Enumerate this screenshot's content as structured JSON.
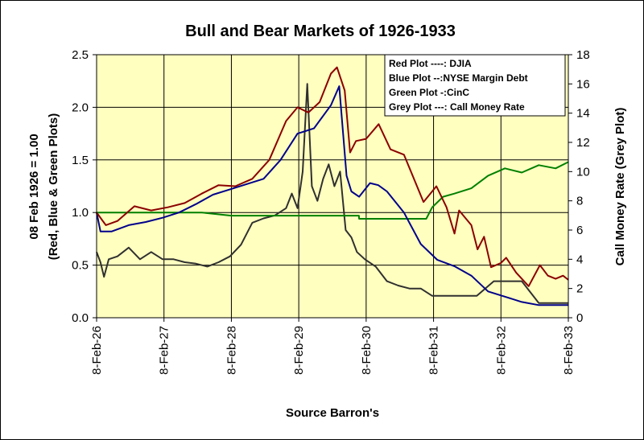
{
  "chart_data": {
    "type": "line",
    "title": "Bull and Bear Markets of 1926-1933",
    "xlabel": "Source Barron's",
    "ylabel_left": "08 Feb 1926 = 1.00",
    "ylabel_left_sub": "(Red, Blue & Green Plots)",
    "ylabel_right": "Call Money Rate (Grey Plot)",
    "x_ticks": [
      "8-Feb-26",
      "8-Feb-27",
      "8-Feb-28",
      "8-Feb-29",
      "8-Feb-30",
      "8-Feb-31",
      "8-Feb-32",
      "8-Feb-33"
    ],
    "x_range": [
      "1926-02-08",
      "1933-02-08"
    ],
    "y_left_ticks": [
      "0.0",
      "0.5",
      "1.0",
      "1.5",
      "2.0",
      "2.5"
    ],
    "y_left_range": [
      0,
      2.5
    ],
    "y_right_ticks": [
      "0",
      "2",
      "4",
      "6",
      "8",
      "10",
      "12",
      "14",
      "16",
      "18"
    ],
    "y_right_range": [
      0,
      18
    ],
    "grid": true,
    "legend_position": "top-right",
    "legend": [
      "Red Plot ----: DJIA",
      "Blue Plot  --:NYSE Margin Debt",
      "Green Plot -:CinC",
      "Grey Plot ---: Call Money Rate"
    ],
    "colors": {
      "plot_bg": "#ffffc0",
      "djia": "#8b0000",
      "margin_debt": "#00008b",
      "cinc": "#008000",
      "call_money": "#303030"
    },
    "series": [
      {
        "name": "DJIA",
        "axis": "left",
        "x": [
          "1926-02-08",
          "1926-03-30",
          "1926-06-01",
          "1926-09-01",
          "1926-12-01",
          "1927-03-01",
          "1927-06-01",
          "1927-09-01",
          "1927-12-01",
          "1928-03-01",
          "1928-06-01",
          "1928-09-01",
          "1928-12-01",
          "1929-02-01",
          "1929-04-01",
          "1929-06-01",
          "1929-08-01",
          "1929-09-03",
          "1929-10-15",
          "1929-11-13",
          "1929-12-15",
          "1930-02-08",
          "1930-04-17",
          "1930-06-20",
          "1930-09-01",
          "1930-12-16",
          "1931-02-24",
          "1931-04-20",
          "1931-06-02",
          "1931-06-27",
          "1931-09-01",
          "1931-10-05",
          "1931-11-09",
          "1931-12-17",
          "1932-02-08",
          "1932-03-08",
          "1932-05-01",
          "1932-07-08",
          "1932-09-07",
          "1932-10-20",
          "1932-12-01",
          "1933-01-10",
          "1933-02-08"
        ],
        "values": [
          1.0,
          0.88,
          0.92,
          1.06,
          1.02,
          1.05,
          1.09,
          1.18,
          1.26,
          1.25,
          1.32,
          1.5,
          1.87,
          2.0,
          1.95,
          2.05,
          2.32,
          2.38,
          2.16,
          1.57,
          1.68,
          1.7,
          1.84,
          1.6,
          1.55,
          1.1,
          1.25,
          1.05,
          0.8,
          1.02,
          0.88,
          0.65,
          0.77,
          0.48,
          0.52,
          0.57,
          0.43,
          0.3,
          0.5,
          0.4,
          0.37,
          0.4,
          0.36
        ]
      },
      {
        "name": "NYSE Margin Debt",
        "axis": "left",
        "x": [
          "1926-02-08",
          "1926-03-01",
          "1926-05-01",
          "1926-08-01",
          "1926-11-01",
          "1927-02-01",
          "1927-05-01",
          "1927-08-01",
          "1927-11-01",
          "1928-02-01",
          "1928-05-01",
          "1928-08-01",
          "1928-11-01",
          "1929-02-01",
          "1929-05-01",
          "1929-08-01",
          "1929-09-15",
          "1929-10-25",
          "1929-11-20",
          "1930-01-01",
          "1930-03-01",
          "1930-04-15",
          "1930-06-01",
          "1930-09-01",
          "1930-12-01",
          "1931-03-01",
          "1931-06-01",
          "1931-09-01",
          "1931-12-01",
          "1932-03-01",
          "1932-06-01",
          "1932-09-01",
          "1932-12-01",
          "1933-02-08"
        ],
        "values": [
          1.0,
          0.82,
          0.82,
          0.88,
          0.91,
          0.95,
          1.0,
          1.08,
          1.17,
          1.22,
          1.27,
          1.32,
          1.5,
          1.75,
          1.8,
          2.02,
          2.2,
          1.35,
          1.2,
          1.15,
          1.28,
          1.26,
          1.2,
          1.0,
          0.7,
          0.55,
          0.49,
          0.4,
          0.25,
          0.2,
          0.15,
          0.12,
          0.12,
          0.12
        ]
      },
      {
        "name": "CinC",
        "axis": "left",
        "x": [
          "1926-02-08",
          "1927-09-01",
          "1928-02-08",
          "1929-12-31",
          "1930-01-01",
          "1930-12-31",
          "1931-02-01",
          "1931-04-01",
          "1931-06-01",
          "1931-09-01",
          "1931-12-01",
          "1932-03-01",
          "1932-06-01",
          "1932-09-01",
          "1932-12-01",
          "1933-02-08"
        ],
        "values": [
          1.0,
          1.0,
          0.97,
          0.97,
          0.94,
          0.94,
          1.05,
          1.15,
          1.18,
          1.23,
          1.35,
          1.42,
          1.38,
          1.45,
          1.42,
          1.48
        ]
      },
      {
        "name": "Call Money Rate",
        "axis": "right",
        "x": [
          "1926-02-08",
          "1926-03-01",
          "1926-03-20",
          "1926-04-15",
          "1926-06-01",
          "1926-08-01",
          "1926-10-01",
          "1926-12-01",
          "1927-02-01",
          "1927-04-01",
          "1927-06-01",
          "1927-08-01",
          "1927-10-01",
          "1927-12-01",
          "1928-02-01",
          "1928-04-01",
          "1928-06-01",
          "1928-08-01",
          "1928-10-01",
          "1928-12-01",
          "1929-01-01",
          "1929-02-01",
          "1929-03-01",
          "1929-03-26",
          "1929-04-20",
          "1929-05-20",
          "1929-06-20",
          "1929-07-20",
          "1929-08-20",
          "1929-09-20",
          "1929-10-20",
          "1929-11-20",
          "1929-12-20",
          "1930-02-01",
          "1930-04-01",
          "1930-06-01",
          "1930-08-01",
          "1930-10-01",
          "1930-12-01",
          "1931-02-01",
          "1931-06-01",
          "1931-10-01",
          "1932-01-01",
          "1932-02-08",
          "1932-06-01",
          "1932-09-01",
          "1932-10-01",
          "1933-02-08"
        ],
        "values": [
          4.5,
          3.8,
          2.8,
          4.0,
          4.2,
          4.8,
          4.0,
          4.5,
          4.0,
          4.0,
          3.8,
          3.7,
          3.5,
          3.8,
          4.2,
          5.0,
          6.5,
          6.8,
          7.0,
          7.5,
          8.5,
          7.5,
          10.0,
          16.0,
          9.0,
          8.0,
          9.5,
          10.5,
          9.0,
          10.0,
          6.0,
          5.5,
          4.5,
          4.0,
          3.5,
          2.5,
          2.2,
          2.0,
          2.0,
          1.5,
          1.5,
          1.5,
          2.5,
          2.5,
          2.5,
          1.0,
          1.0,
          1.0
        ]
      }
    ]
  }
}
